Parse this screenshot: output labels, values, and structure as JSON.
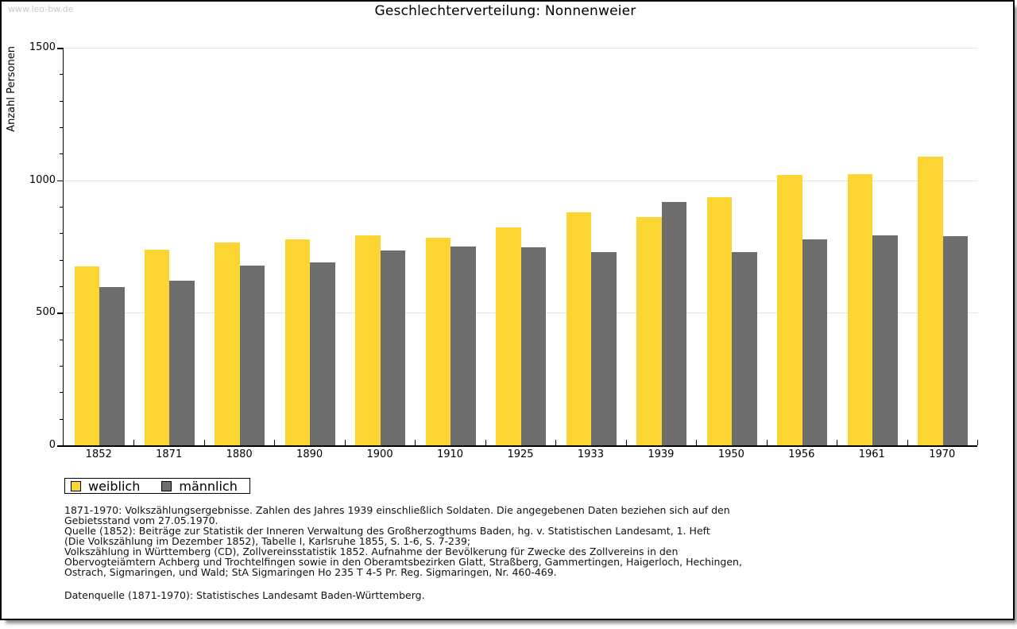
{
  "watermark": "www.leo-bw.de",
  "title": "Geschlechterverteilung: Nonnenweier",
  "chart_data": {
    "type": "bar",
    "title": "Geschlechterverteilung: Nonnenweier",
    "xlabel": "",
    "ylabel": "Anzahl Personen",
    "ylim": [
      0,
      1500
    ],
    "y_ticks": [
      0,
      500,
      1000,
      1500
    ],
    "y_minor_step": 100,
    "grid_values": [
      500,
      1000,
      1500
    ],
    "grid": "horizontal",
    "legend_position": "bottom-left",
    "categories": [
      "1852",
      "1871",
      "1880",
      "1890",
      "1900",
      "1910",
      "1925",
      "1933",
      "1939",
      "1950",
      "1956",
      "1961",
      "1970"
    ],
    "series": [
      {
        "name": "weiblich",
        "color": "#FCD533",
        "values": [
          676,
          737,
          766,
          778,
          793,
          782,
          823,
          880,
          861,
          937,
          1021,
          1022,
          1090
        ]
      },
      {
        "name": "männlich",
        "color": "#6E6E6E",
        "values": [
          597,
          622,
          678,
          689,
          736,
          750,
          746,
          728,
          917,
          728,
          778,
          791,
          788
        ]
      }
    ]
  },
  "legend": {
    "items": [
      {
        "label": "weiblich",
        "color": "#FCD533"
      },
      {
        "label": "männlich",
        "color": "#6E6E6E"
      }
    ]
  },
  "footnotes": {
    "lines": [
      "1871-1970: Volkszählungsergebnisse. Zahlen des Jahres 1939 einschließlich Soldaten. Die angegebenen Daten beziehen sich auf den",
      "Gebietsstand vom 27.05.1970.",
      "Quelle (1852): Beiträge zur Statistik der Inneren Verwaltung des Großherzogthums Baden, hg. v. Statistischen Landesamt, 1. Heft",
      "(Die Volkszählung im Dezember 1852), Tabelle I, Karlsruhe 1855, S. 1-6, S. 7-239;",
      "Volkszählung in Württemberg (CD), Zollvereinsstatistik 1852. Aufnahme der Bevölkerung für Zwecke des Zollvereins in den",
      "Obervogteiämtern Achberg und Trochtelfingen sowie in den Oberamtsbezirken Glatt, Straßberg, Gammertingen, Haigerloch, Hechingen,",
      "Ostrach, Sigmaringen, und Wald; StA Sigmaringen Ho 235 T 4-5 Pr. Reg. Sigmaringen, Nr. 460-469."
    ],
    "datasource": "Datenquelle (1871-1970): Statistisches Landesamt Baden-Württemberg."
  },
  "colors": {
    "weiblich": "#FCD533",
    "maennlich": "#6E6E6E",
    "gridline": "#e3e3e3",
    "axis": "#000000",
    "frame": "#000000",
    "shadow": "#8f8f8f",
    "watermark": "#c9c9c9"
  }
}
